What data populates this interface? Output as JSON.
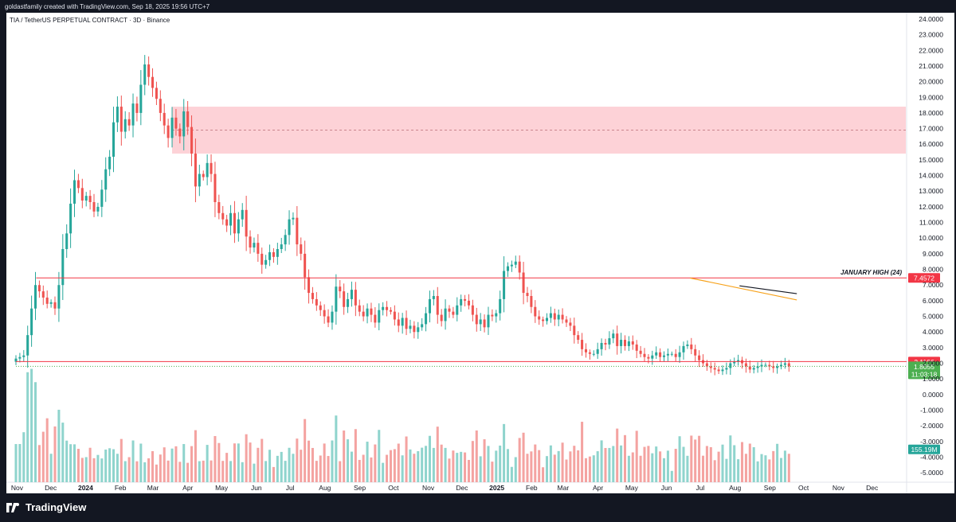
{
  "header": {
    "attribution": "goldastfamily created with TradingView.com, Sep 18, 2025 19:56 UTC+7",
    "symbol_title": "TIA / TetherUS PERPETUAL CONTRACT · 3D · Binance"
  },
  "footer": {
    "brand": "TradingView"
  },
  "colors": {
    "up": "#26a69a",
    "down": "#ef5350",
    "up_vol": "#8fd4cd",
    "down_vol": "#f4a3a1",
    "zone": "#fdd2d7",
    "level": "#f23645",
    "last_price": "#4caf50",
    "volume_badge": "#26a69a",
    "background": "#ffffff",
    "frame": "#131722"
  },
  "chart_data": {
    "type": "candlestick",
    "ylim": [
      -5.6,
      24.2
    ],
    "price_ticks": [
      "24.0000",
      "23.0000",
      "22.0000",
      "21.0000",
      "20.0000",
      "19.0000",
      "18.0000",
      "17.0000",
      "16.0000",
      "15.0000",
      "14.0000",
      "13.0000",
      "12.0000",
      "11.0000",
      "10.0000",
      "9.0000",
      "8.0000",
      "7.0000",
      "6.0000",
      "5.0000",
      "4.0000",
      "3.0000",
      "2.0000",
      "1.0000",
      "0.0000",
      "-1.0000",
      "-2.0000",
      "-3.0000",
      "-4.0000",
      "-5.0000"
    ],
    "x_labels": [
      {
        "label": "Nov",
        "date": "2023-11-01",
        "bold": false
      },
      {
        "label": "Dec",
        "date": "2023-12-01",
        "bold": false
      },
      {
        "label": "2024",
        "date": "2024-01-01",
        "bold": true
      },
      {
        "label": "Feb",
        "date": "2024-02-01",
        "bold": false
      },
      {
        "label": "Mar",
        "date": "2024-03-01",
        "bold": false
      },
      {
        "label": "Apr",
        "date": "2024-04-01",
        "bold": false
      },
      {
        "label": "May",
        "date": "2024-05-01",
        "bold": false
      },
      {
        "label": "Jun",
        "date": "2024-06-01",
        "bold": false
      },
      {
        "label": "Jul",
        "date": "2024-07-01",
        "bold": false
      },
      {
        "label": "Aug",
        "date": "2024-08-01",
        "bold": false
      },
      {
        "label": "Sep",
        "date": "2024-09-01",
        "bold": false
      },
      {
        "label": "Oct",
        "date": "2024-10-01",
        "bold": false
      },
      {
        "label": "Nov",
        "date": "2024-11-01",
        "bold": false
      },
      {
        "label": "Dec",
        "date": "2024-12-01",
        "bold": false
      },
      {
        "label": "2025",
        "date": "2025-01-01",
        "bold": true
      },
      {
        "label": "Feb",
        "date": "2025-02-01",
        "bold": false
      },
      {
        "label": "Mar",
        "date": "2025-03-01",
        "bold": false
      },
      {
        "label": "Apr",
        "date": "2025-04-01",
        "bold": false
      },
      {
        "label": "May",
        "date": "2025-05-01",
        "bold": false
      },
      {
        "label": "Jun",
        "date": "2025-06-01",
        "bold": false
      },
      {
        "label": "Jul",
        "date": "2025-07-01",
        "bold": false
      },
      {
        "label": "Aug",
        "date": "2025-08-01",
        "bold": false
      },
      {
        "label": "Sep",
        "date": "2025-09-01",
        "bold": false
      },
      {
        "label": "Oct",
        "date": "2025-10-01",
        "bold": false
      },
      {
        "label": "Nov",
        "date": "2025-11-01",
        "bold": false
      },
      {
        "label": "Dec",
        "date": "2025-12-01",
        "bold": false
      }
    ],
    "first_date": "2023-10-31",
    "last_date": "2025-12-31",
    "closes": [
      2.3,
      2.4,
      2.5,
      3.8,
      5.5,
      7.0,
      6.6,
      6.2,
      5.8,
      5.9,
      5.5,
      7.0,
      9.3,
      10.3,
      12.2,
      13.7,
      13.2,
      12.4,
      12.7,
      12.3,
      11.7,
      12.0,
      13.1,
      14.4,
      15.2,
      17.4,
      18.4,
      16.8,
      17.6,
      17.2,
      18.6,
      18.0,
      19.8,
      21.1,
      20.3,
      19.6,
      18.9,
      18.0,
      17.2,
      16.4,
      17.7,
      17.0,
      16.5,
      18.1,
      17.1,
      15.4,
      13.3,
      14.1,
      13.9,
      14.8,
      14.1,
      12.3,
      11.6,
      11.2,
      10.8,
      11.6,
      10.3,
      11.2,
      11.8,
      10.1,
      9.4,
      9.7,
      9.0,
      8.3,
      8.6,
      9.1,
      8.8,
      9.3,
      9.6,
      10.2,
      11.2,
      11.3,
      9.6,
      9.0,
      7.5,
      6.5,
      6.1,
      5.7,
      5.4,
      5.0,
      4.6,
      5.3,
      6.9,
      6.6,
      5.6,
      6.1,
      6.7,
      5.7,
      5.3,
      5.0,
      5.5,
      5.1,
      4.6,
      5.4,
      5.6,
      5.4,
      5.3,
      4.8,
      4.4,
      4.9,
      4.2,
      4.4,
      4.0,
      4.3,
      4.5,
      5.2,
      6.1,
      6.3,
      5.1,
      4.7,
      5.5,
      5.3,
      5.1,
      5.7,
      6.1,
      6.0,
      5.7,
      5.1,
      4.5,
      4.8,
      4.3,
      5.1,
      5.0,
      5.2,
      6.1,
      7.9,
      8.2,
      8.3,
      8.5,
      7.8,
      6.5,
      6.3,
      5.6,
      5.0,
      4.8,
      4.7,
      4.9,
      5.2,
      4.8,
      5.1,
      4.8,
      4.6,
      4.4,
      3.8,
      3.5,
      2.9,
      2.7,
      2.6,
      2.6,
      2.9,
      3.3,
      3.2,
      3.6,
      3.9,
      3.1,
      3.5,
      3.1,
      3.4,
      3.2,
      2.8,
      2.6,
      2.4,
      2.3,
      2.5,
      2.7,
      2.4,
      2.5,
      2.6,
      2.6,
      2.4,
      2.7,
      3.1,
      3.2,
      2.9,
      2.5,
      2.2,
      2.0,
      1.8,
      1.7,
      1.6,
      1.5,
      1.6,
      1.7,
      2.0,
      2.1,
      2.2,
      2.0,
      1.8,
      1.6,
      1.7,
      1.8,
      1.9,
      1.9,
      1.8,
      1.7,
      1.8,
      1.9,
      2.0,
      1.8
    ]
  },
  "annotations": {
    "zone": {
      "top": 18.4,
      "bottom": 15.4,
      "mid": 16.9
    },
    "levels": [
      {
        "name": "january-high",
        "value": 7.4572,
        "label": "JANUARY HIGH (24)",
        "badge": "7.4572"
      },
      {
        "name": "support",
        "value": 2.1106,
        "badge": "2.1106"
      }
    ],
    "last_price": {
      "value": 1.8055,
      "label": "1.8055",
      "countdown": "11:03:18"
    },
    "volume_badge": "155.19M",
    "trendlines": [
      {
        "color": "#f7a21b",
        "from": [
          "2025-06-22",
          7.45
        ],
        "to": [
          "2025-09-25",
          6.05
        ]
      },
      {
        "color": "#131722",
        "from": [
          "2025-08-05",
          6.95
        ],
        "to": [
          "2025-09-25",
          6.45
        ]
      }
    ]
  }
}
